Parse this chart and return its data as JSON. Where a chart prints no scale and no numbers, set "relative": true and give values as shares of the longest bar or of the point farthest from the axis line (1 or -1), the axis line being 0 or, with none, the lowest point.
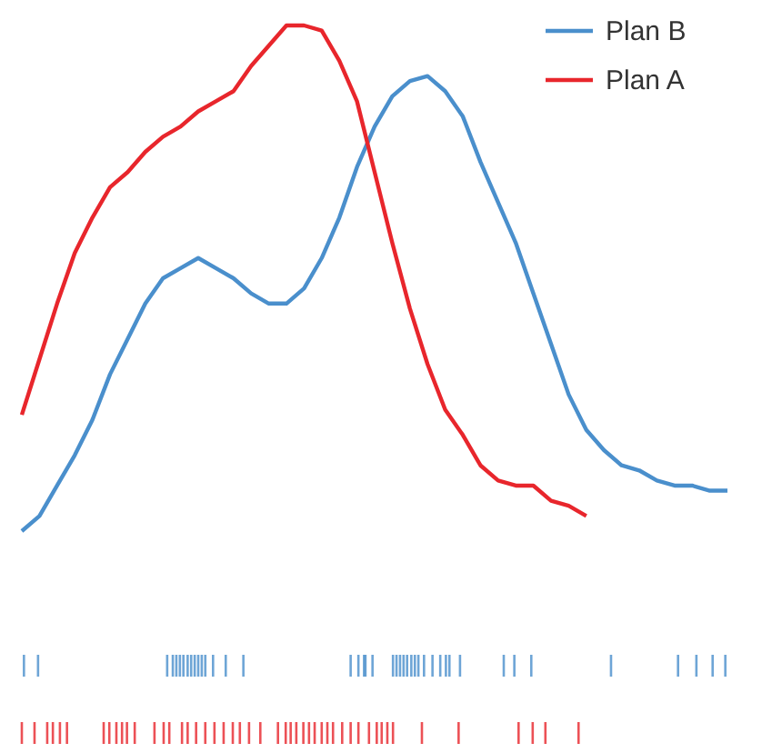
{
  "chart_data": {
    "type": "line",
    "relative": true,
    "legend": "top right",
    "categories": [
      null,
      null,
      null,
      null,
      null,
      null,
      null,
      null,
      null,
      null,
      null,
      null,
      null,
      null,
      null,
      null,
      null,
      null,
      null,
      null,
      null,
      null,
      null,
      null,
      null,
      null,
      null,
      null,
      null,
      null,
      null,
      null,
      null,
      null,
      null,
      null,
      null,
      null,
      null,
      null,
      null
    ],
    "series": [
      {
        "name": "Plan B",
        "color": "#4a8fcc",
        "values": [
          0,
          0.03,
          0.09,
          0.15,
          0.22,
          0.31,
          0.38,
          0.45,
          0.5,
          0.52,
          0.54,
          0.52,
          0.5,
          0.47,
          0.45,
          0.45,
          0.48,
          0.54,
          0.62,
          0.72,
          0.8,
          0.86,
          0.89,
          0.9,
          0.87,
          0.82,
          0.73,
          0.65,
          0.57,
          0.47,
          0.37,
          0.27,
          0.2,
          0.16,
          0.13,
          0.12,
          0.1,
          0.09,
          0.09,
          0.08,
          0.08
        ]
      },
      {
        "name": "Plan A",
        "color": "#e8262c",
        "values": [
          0.23,
          0.34,
          0.45,
          0.55,
          0.62,
          0.68,
          0.71,
          0.75,
          0.78,
          0.8,
          0.83,
          0.85,
          0.87,
          0.92,
          0.96,
          1,
          1,
          0.99,
          0.93,
          0.85,
          0.71,
          0.57,
          0.44,
          0.33,
          0.24,
          0.19,
          0.13,
          0.1,
          0.09,
          0.09,
          0.06,
          0.05,
          0.03,
          null,
          null,
          null,
          null,
          null,
          null,
          null,
          null
        ]
      }
    ]
  }
}
